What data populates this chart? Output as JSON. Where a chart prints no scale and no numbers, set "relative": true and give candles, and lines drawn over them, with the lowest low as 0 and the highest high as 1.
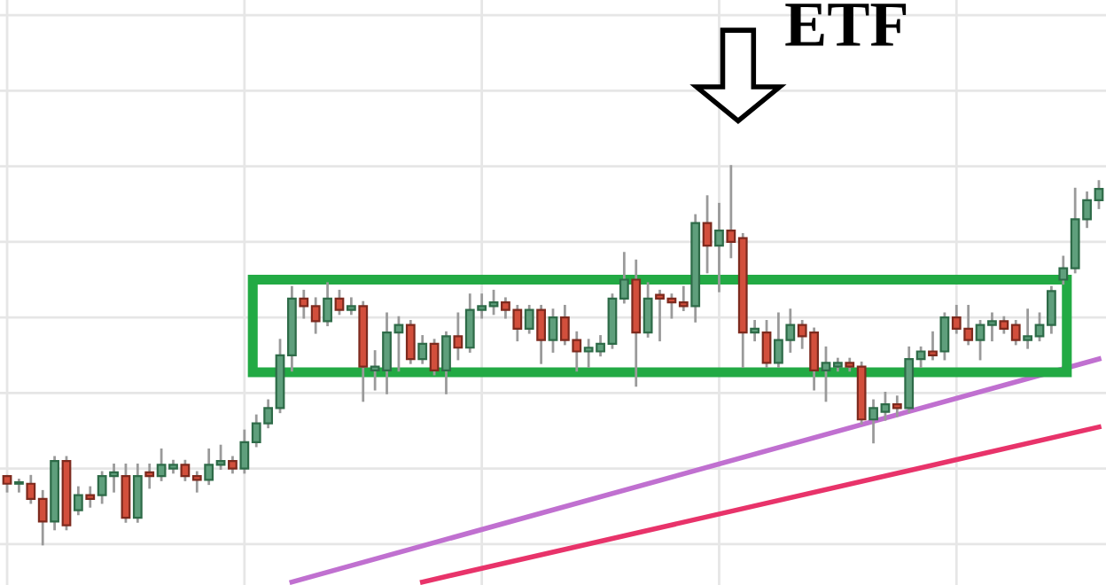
{
  "chart_data": {
    "type": "candlestick",
    "relative": true,
    "grid": true,
    "annotations": [
      "ETF"
    ],
    "categories": [
      null,
      null,
      null,
      null,
      null,
      null,
      null,
      null,
      null,
      null,
      null,
      null,
      null,
      null,
      null,
      null,
      null,
      null,
      null,
      null,
      null,
      null,
      null,
      null,
      null,
      null,
      null,
      null,
      null,
      null,
      null,
      null,
      null,
      null,
      null,
      null,
      null,
      null,
      null,
      null,
      null,
      null,
      null,
      null,
      null,
      null,
      null,
      null,
      null,
      null,
      null,
      null,
      null,
      null,
      null,
      null,
      null,
      null,
      null,
      null,
      null,
      null,
      null,
      null,
      null,
      null,
      null,
      null,
      null,
      null,
      null,
      null,
      null,
      null,
      null,
      null,
      null,
      null,
      null,
      null,
      null,
      null,
      null,
      null,
      null,
      null,
      null,
      null,
      null,
      null,
      null,
      null,
      null
    ],
    "ohlc": [
      [
        0.18,
        0.18,
        0.14,
        0.16
      ],
      [
        0.16,
        0.17,
        0.14,
        0.16
      ],
      [
        0.16,
        0.18,
        0.11,
        0.12
      ],
      [
        0.12,
        0.14,
        0,
        0.06
      ],
      [
        0.06,
        0.23,
        0.04,
        0.22
      ],
      [
        0.22,
        0.23,
        0.04,
        0.05
      ],
      [
        0.09,
        0.15,
        0.08,
        0.13
      ],
      [
        0.13,
        0.15,
        0.1,
        0.12
      ],
      [
        0.13,
        0.19,
        0.11,
        0.18
      ],
      [
        0.18,
        0.21,
        0.14,
        0.19
      ],
      [
        0.18,
        0.21,
        0.06,
        0.07
      ],
      [
        0.07,
        0.21,
        0.06,
        0.18
      ],
      [
        0.19,
        0.21,
        0.15,
        0.18
      ],
      [
        0.18,
        0.25,
        0.17,
        0.21
      ],
      [
        0.2,
        0.22,
        0.19,
        0.21
      ],
      [
        0.21,
        0.22,
        0.17,
        0.18
      ],
      [
        0.18,
        0.19,
        0.14,
        0.17
      ],
      [
        0.17,
        0.25,
        0.16,
        0.21
      ],
      [
        0.21,
        0.26,
        0.2,
        0.22
      ],
      [
        0.22,
        0.23,
        0.19,
        0.2
      ],
      [
        0.2,
        0.3,
        0.19,
        0.27
      ],
      [
        0.27,
        0.34,
        0.26,
        0.32
      ],
      [
        0.32,
        0.38,
        0.31,
        0.36
      ],
      [
        0.36,
        0.54,
        0.35,
        0.5
      ],
      [
        0.5,
        0.68,
        0.46,
        0.65
      ],
      [
        0.65,
        0.67,
        0.6,
        0.63
      ],
      [
        0.63,
        0.65,
        0.56,
        0.59
      ],
      [
        0.59,
        0.69,
        0.58,
        0.65
      ],
      [
        0.65,
        0.67,
        0.61,
        0.62
      ],
      [
        0.62,
        0.65,
        0.61,
        0.63
      ],
      [
        0.63,
        0.64,
        0.38,
        0.47
      ],
      [
        0.46,
        0.51,
        0.41,
        0.47
      ],
      [
        0.46,
        0.61,
        0.4,
        0.56
      ],
      [
        0.56,
        0.6,
        0.46,
        0.58
      ],
      [
        0.58,
        0.59,
        0.48,
        0.49
      ],
      [
        0.49,
        0.55,
        0.48,
        0.53
      ],
      [
        0.53,
        0.54,
        0.45,
        0.46
      ],
      [
        0.46,
        0.56,
        0.4,
        0.55
      ],
      [
        0.55,
        0.61,
        0.49,
        0.52
      ],
      [
        0.52,
        0.66,
        0.51,
        0.62
      ],
      [
        0.62,
        0.66,
        0.6,
        0.63
      ],
      [
        0.63,
        0.67,
        0.61,
        0.64
      ],
      [
        0.64,
        0.65,
        0.6,
        0.62
      ],
      [
        0.62,
        0.63,
        0.54,
        0.57
      ],
      [
        0.57,
        0.63,
        0.56,
        0.62
      ],
      [
        0.62,
        0.63,
        0.48,
        0.54
      ],
      [
        0.54,
        0.62,
        0.51,
        0.6
      ],
      [
        0.6,
        0.63,
        0.53,
        0.54
      ],
      [
        0.54,
        0.56,
        0.46,
        0.51
      ],
      [
        0.51,
        0.54,
        0.47,
        0.52
      ],
      [
        0.51,
        0.55,
        0.5,
        0.53
      ],
      [
        0.53,
        0.66,
        0.52,
        0.65
      ],
      [
        0.65,
        0.77,
        0.64,
        0.7
      ],
      [
        0.7,
        0.75,
        0.42,
        0.56
      ],
      [
        0.56,
        0.69,
        0.55,
        0.65
      ],
      [
        0.66,
        0.67,
        0.54,
        0.65
      ],
      [
        0.65,
        0.66,
        0.6,
        0.64
      ],
      [
        0.64,
        0.68,
        0.62,
        0.63
      ],
      [
        0.63,
        0.87,
        0.59,
        0.85
      ],
      [
        0.85,
        0.92,
        0.72,
        0.79
      ],
      [
        0.79,
        0.9,
        0.67,
        0.83
      ],
      [
        0.83,
        1,
        0.76,
        0.8
      ],
      [
        0.81,
        0.82,
        0.47,
        0.56
      ],
      [
        0.56,
        0.59,
        0.54,
        0.57
      ],
      [
        0.56,
        0.59,
        0.47,
        0.48
      ],
      [
        0.48,
        0.61,
        0.47,
        0.54
      ],
      [
        0.54,
        0.62,
        0.51,
        0.58
      ],
      [
        0.58,
        0.59,
        0.52,
        0.55
      ],
      [
        0.56,
        0.57,
        0.41,
        0.46
      ],
      [
        0.46,
        0.52,
        0.38,
        0.48
      ],
      [
        0.47,
        0.49,
        0.46,
        0.48
      ],
      [
        0.48,
        0.49,
        0.46,
        0.47
      ],
      [
        0.47,
        0.48,
        0.32,
        0.33
      ],
      [
        0.33,
        0.38,
        0.27,
        0.36
      ],
      [
        0.35,
        0.4,
        0.33,
        0.37
      ],
      [
        0.37,
        0.39,
        0.34,
        0.36
      ],
      [
        0.36,
        0.52,
        0.35,
        0.49
      ],
      [
        0.49,
        0.52,
        0.47,
        0.51
      ],
      [
        0.51,
        0.56,
        0.49,
        0.5
      ],
      [
        0.51,
        0.61,
        0.49,
        0.6
      ],
      [
        0.6,
        0.63,
        0.56,
        0.57
      ],
      [
        0.57,
        0.63,
        0.53,
        0.54
      ],
      [
        0.54,
        0.59,
        0.49,
        0.58
      ],
      [
        0.58,
        0.61,
        0.54,
        0.59
      ],
      [
        0.59,
        0.6,
        0.56,
        0.57
      ],
      [
        0.58,
        0.59,
        0.53,
        0.54
      ],
      [
        0.54,
        0.62,
        0.52,
        0.55
      ],
      [
        0.55,
        0.61,
        0.54,
        0.58
      ],
      [
        0.58,
        0.68,
        0.56,
        0.67
      ],
      [
        0.7,
        0.76,
        0.69,
        0.73
      ],
      [
        0.73,
        0.94,
        0.72,
        0.86
      ],
      [
        0.86,
        0.93,
        0.84,
        0.91
      ],
      [
        0.91,
        0.96,
        0.89,
        0.94
      ]
    ],
    "series": [
      {
        "type": "line",
        "color": "#c070d0",
        "values": [
          null,
          null,
          null,
          null,
          null,
          null,
          null,
          null,
          null,
          null,
          null,
          null,
          null,
          null,
          null,
          null,
          null,
          null,
          null,
          null,
          null,
          null,
          null,
          null,
          -0.1,
          null,
          null,
          null,
          null,
          null,
          null,
          null,
          null,
          null,
          null,
          null,
          null,
          null,
          null,
          null,
          null,
          null,
          null,
          null,
          null,
          null,
          null,
          null,
          null,
          null,
          null,
          null,
          null,
          null,
          null,
          null,
          null,
          null,
          null,
          null,
          null,
          null,
          null,
          null,
          null,
          null,
          null,
          null,
          null,
          null,
          null,
          null,
          null,
          null,
          null,
          null,
          null,
          null,
          null,
          null,
          null,
          null,
          null,
          null,
          null,
          null,
          null,
          null,
          null,
          null,
          null,
          null,
          0.49
        ]
      },
      {
        "type": "line",
        "color": "#e8336a",
        "values": [
          null,
          null,
          null,
          null,
          null,
          null,
          null,
          null,
          null,
          null,
          null,
          null,
          null,
          null,
          null,
          null,
          null,
          null,
          null,
          null,
          null,
          null,
          null,
          null,
          null,
          null,
          null,
          null,
          null,
          null,
          null,
          null,
          null,
          null,
          null,
          -0.1,
          null,
          null,
          null,
          null,
          null,
          null,
          null,
          null,
          null,
          null,
          null,
          null,
          null,
          null,
          null,
          null,
          null,
          null,
          null,
          null,
          null,
          null,
          null,
          null,
          null,
          null,
          null,
          null,
          null,
          null,
          null,
          null,
          null,
          null,
          null,
          null,
          null,
          null,
          null,
          null,
          null,
          null,
          null,
          null,
          null,
          null,
          null,
          null,
          null,
          null,
          null,
          null,
          null,
          null,
          null,
          null,
          0.31
        ]
      }
    ]
  }
}
